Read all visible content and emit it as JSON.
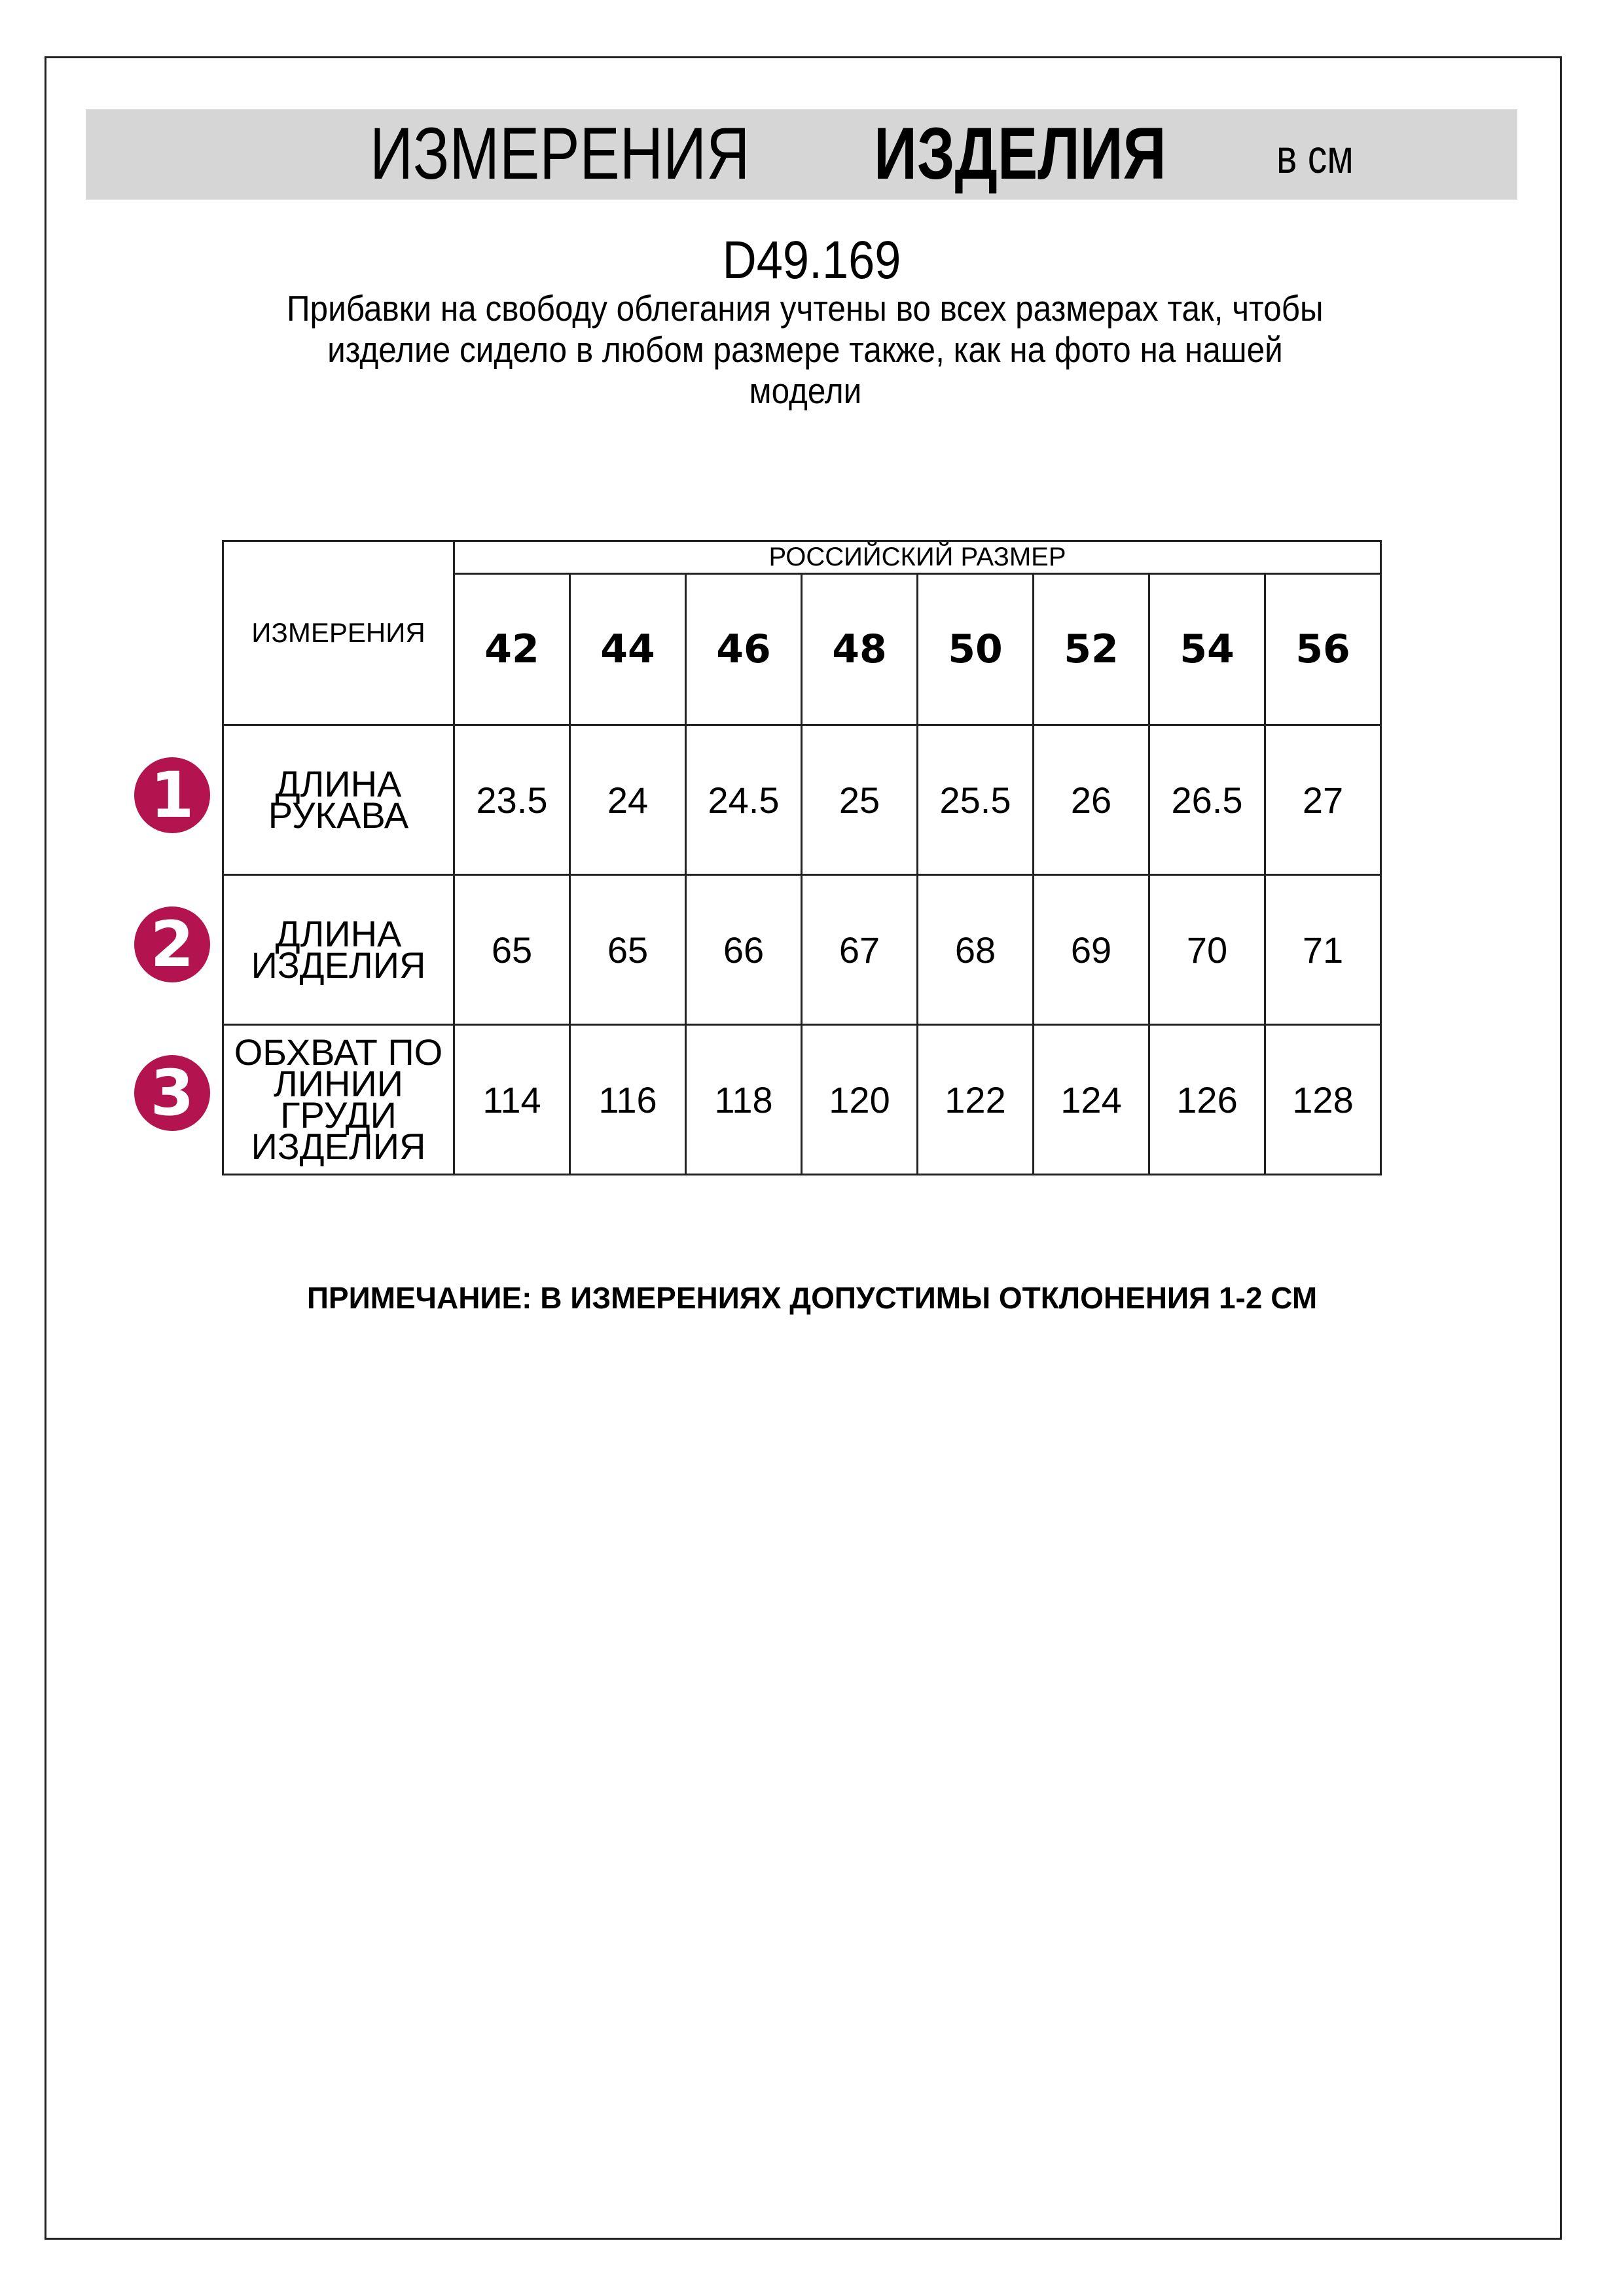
{
  "header": {
    "title_regular": "ИЗМЕРЕНИЯ",
    "title_bold": "ИЗДЕЛИЯ",
    "unit": "в см"
  },
  "product_code": "D49.169",
  "description_lines": [
    "Прибавки на свободу облегания учтены во всех размерах так, чтобы",
    "изделие сидело в любом размере также, как на фото на нашей",
    "модели"
  ],
  "table": {
    "measurements_header": "ИЗМЕРЕНИЯ",
    "size_group_header": "РОССИЙСКИЙ РАЗМЕР",
    "sizes": [
      "42",
      "44",
      "46",
      "48",
      "50",
      "52",
      "54",
      "56"
    ],
    "rows": [
      {
        "number": "1",
        "label_lines": [
          "ДЛИНА РУКАВА"
        ],
        "values": [
          "23.5",
          "24",
          "24.5",
          "25",
          "25.5",
          "26",
          "26.5",
          "27"
        ]
      },
      {
        "number": "2",
        "label_lines": [
          "ДЛИНА",
          "ИЗДЕЛИЯ"
        ],
        "values": [
          "65",
          "65",
          "66",
          "67",
          "68",
          "69",
          "70",
          "71"
        ]
      },
      {
        "number": "3",
        "label_lines": [
          "ОБХВАТ ПО",
          "ЛИНИИ ГРУДИ",
          "ИЗДЕЛИЯ"
        ],
        "values": [
          "114",
          "116",
          "118",
          "120",
          "122",
          "124",
          "126",
          "128"
        ]
      }
    ]
  },
  "note": "ПРИМЕЧАНИЕ: В ИЗМЕРЕНИЯХ ДОПУСТИМЫ ОТКЛОНЕНИЯ 1-2 СМ",
  "colors": {
    "badge": "#b3134f",
    "header_band": "#d6d6d6"
  }
}
